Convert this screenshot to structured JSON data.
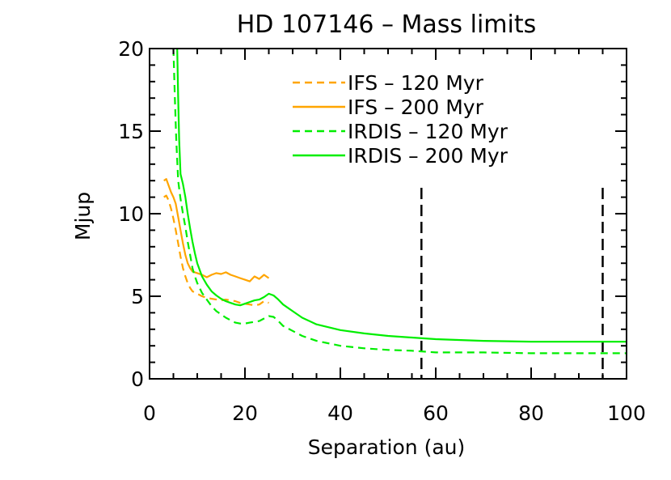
{
  "chart_data": {
    "type": "line",
    "title": "HD 107146 – Mass limits",
    "xlabel": "Separation (au)",
    "ylabel": "Mjup",
    "xlim": [
      0,
      100
    ],
    "ylim": [
      0,
      20
    ],
    "xticks": [
      0,
      20,
      40,
      60,
      80,
      100
    ],
    "yticks": [
      0,
      5,
      10,
      15,
      20
    ],
    "grid": false,
    "legend_position": "top-right",
    "vlines": [
      57,
      95
    ],
    "series": [
      {
        "name": "IFS – 120 Myr",
        "label": "IFS – 120 Myr",
        "color": "#ffa500",
        "dashed": true,
        "x": [
          3.0,
          3.5,
          4.0,
          4.5,
          5.0,
          5.5,
          6.0,
          6.5,
          7.0,
          7.5,
          8.0,
          8.5,
          9.0,
          10.0,
          11.0,
          12.0,
          13.0,
          14.0,
          15.0,
          16.0,
          17.0,
          18.0,
          19.0,
          20.0,
          21.0,
          22.0,
          23.0,
          24.0,
          25.0
        ],
        "y": [
          11.0,
          11.1,
          10.8,
          10.3,
          9.7,
          9.0,
          8.2,
          7.4,
          6.7,
          6.2,
          5.8,
          5.5,
          5.3,
          5.15,
          5.0,
          4.9,
          4.85,
          4.8,
          4.75,
          4.8,
          4.75,
          4.7,
          4.6,
          4.55,
          4.5,
          4.45,
          4.5,
          4.7,
          4.6
        ]
      },
      {
        "name": "IFS – 200 Myr",
        "label": "IFS – 200 Myr",
        "color": "#ffa500",
        "dashed": false,
        "x": [
          3.0,
          3.5,
          4.0,
          4.5,
          5.0,
          5.5,
          6.0,
          6.5,
          7.0,
          7.5,
          8.0,
          8.5,
          9.0,
          10.0,
          11.0,
          12.0,
          13.0,
          14.0,
          15.0,
          16.0,
          17.0,
          18.0,
          19.0,
          20.0,
          21.0,
          22.0,
          23.0,
          24.0,
          25.0
        ],
        "y": [
          12.0,
          12.1,
          11.7,
          11.3,
          11.0,
          10.6,
          9.8,
          9.0,
          8.2,
          7.5,
          7.0,
          6.7,
          6.5,
          6.4,
          6.3,
          6.15,
          6.3,
          6.4,
          6.35,
          6.45,
          6.3,
          6.2,
          6.1,
          6.0,
          5.9,
          6.2,
          6.05,
          6.3,
          6.1
        ]
      },
      {
        "name": "IRDIS – 120 Myr",
        "label": "IRDIS – 120 Myr",
        "color": "#00ee00",
        "dashed": true,
        "x": [
          5.0,
          5.3,
          5.6,
          6.0,
          6.5,
          7.0,
          7.5,
          8.0,
          8.5,
          9.0,
          9.5,
          10.0,
          11.0,
          12.0,
          13.0,
          14.0,
          15.0,
          16.0,
          17.0,
          18.0,
          19.0,
          20.0,
          21.0,
          22.0,
          23.0,
          24.0,
          25.0,
          26.0,
          27.0,
          28.0,
          30.0,
          32.0,
          35.0,
          40.0,
          45.0,
          50.0,
          55.0,
          60.0,
          70.0,
          80.0,
          90.0,
          100.0
        ],
        "y": [
          20.0,
          17.0,
          14.5,
          12.0,
          10.9,
          10.0,
          9.2,
          8.3,
          7.5,
          6.7,
          6.2,
          5.8,
          5.2,
          4.8,
          4.4,
          4.1,
          3.9,
          3.7,
          3.55,
          3.4,
          3.35,
          3.35,
          3.4,
          3.45,
          3.5,
          3.65,
          3.8,
          3.75,
          3.5,
          3.2,
          2.9,
          2.6,
          2.3,
          2.0,
          1.85,
          1.75,
          1.7,
          1.6,
          1.6,
          1.55,
          1.55,
          1.55
        ]
      },
      {
        "name": "IRDIS – 200 Myr",
        "label": "IRDIS – 200 Myr",
        "color": "#00ee00",
        "dashed": false,
        "x": [
          5.8,
          6.0,
          6.2,
          6.5,
          7.0,
          7.5,
          8.0,
          8.5,
          9.0,
          9.5,
          10.0,
          11.0,
          12.0,
          13.0,
          14.0,
          15.0,
          16.0,
          17.0,
          18.0,
          19.0,
          20.0,
          21.0,
          22.0,
          23.0,
          24.0,
          25.0,
          26.0,
          27.0,
          28.0,
          30.0,
          32.0,
          35.0,
          40.0,
          45.0,
          50.0,
          55.0,
          60.0,
          70.0,
          80.0,
          90.0,
          100.0
        ],
        "y": [
          20.0,
          17.0,
          14.5,
          12.4,
          11.8,
          11.0,
          10.0,
          9.1,
          8.3,
          7.6,
          7.0,
          6.2,
          5.7,
          5.3,
          5.05,
          4.85,
          4.7,
          4.6,
          4.5,
          4.45,
          4.55,
          4.65,
          4.75,
          4.8,
          4.95,
          5.15,
          5.05,
          4.8,
          4.5,
          4.1,
          3.7,
          3.3,
          2.95,
          2.75,
          2.6,
          2.5,
          2.4,
          2.3,
          2.25,
          2.25,
          2.25
        ]
      }
    ]
  }
}
